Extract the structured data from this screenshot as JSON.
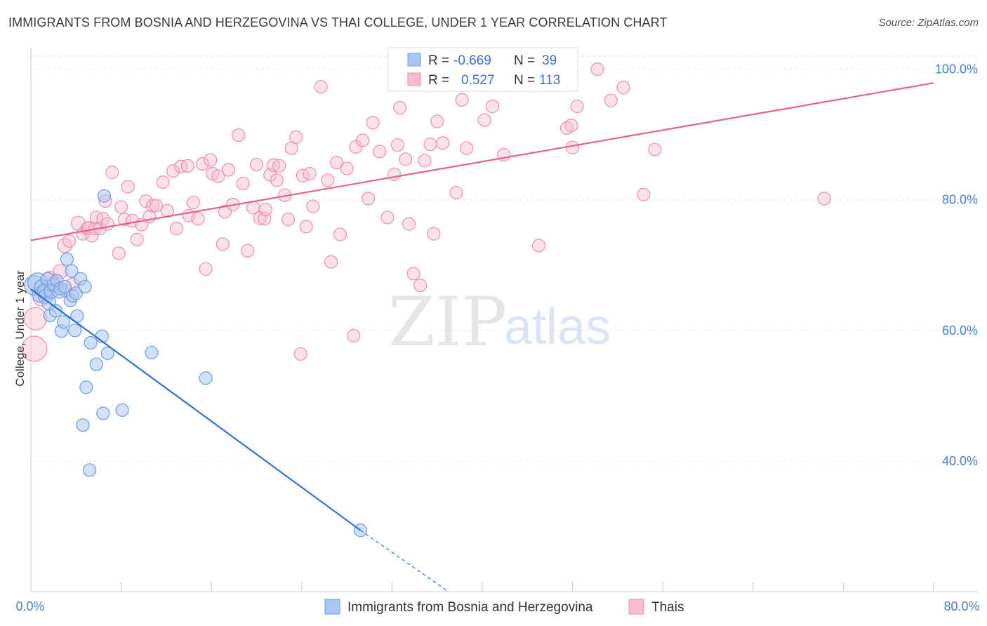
{
  "header": {
    "title": "IMMIGRANTS FROM BOSNIA AND HERZEGOVINA VS THAI COLLEGE, UNDER 1 YEAR CORRELATION CHART",
    "source": "Source: ZipAtlas.com"
  },
  "watermark": {
    "zip": "ZIP",
    "atlas": "atlas"
  },
  "legend": {
    "r_label": "R =",
    "n_label": "N =",
    "series": [
      {
        "r": "-0.669",
        "n": "39"
      },
      {
        "r": "0.527",
        "n": "113"
      }
    ]
  },
  "chart_data": {
    "type": "scatter",
    "title": "IMMIGRANTS FROM BOSNIA AND HERZEGOVINA VS THAI COLLEGE, UNDER 1 YEAR CORRELATION CHART",
    "xlabel": "",
    "ylabel": "College, Under 1 year",
    "xlim": [
      0,
      80
    ],
    "ylim": [
      20,
      102
    ],
    "x_tick_labels": [
      "0.0%",
      "80.0%"
    ],
    "y_ticks": [
      40,
      60,
      80,
      100
    ],
    "y_tick_labels": [
      "40.0%",
      "60.0%",
      "80.0%",
      "100.0%"
    ],
    "grid": true,
    "legend_position": "top-center",
    "colors": {
      "bosnia_fill": "#a9c6f0",
      "bosnia_stroke": "#6d9be0",
      "bosnia_line": "#2f72d6",
      "thai_fill": "#f7bcd0",
      "thai_stroke": "#ea8fae",
      "thai_line": "#e2638e"
    },
    "series": [
      {
        "name": "Immigrants from Bosnia and Herzegovina",
        "r": -0.669,
        "n": 39,
        "trend": {
          "x0": 0,
          "y0": 66.3,
          "x1": 29.2,
          "y1": 29.4,
          "dash_to_x": 37.0,
          "dash_to_y": 20.0
        },
        "points": [
          [
            0.3,
            66.9,
            14
          ],
          [
            0.6,
            67.3,
            14
          ],
          [
            0.8,
            65.5,
            11
          ],
          [
            1.0,
            66.6,
            11
          ],
          [
            1.2,
            66.0,
            10
          ],
          [
            1.3,
            65.2,
            10
          ],
          [
            1.5,
            67.8,
            10
          ],
          [
            1.6,
            64.2,
            10
          ],
          [
            1.7,
            62.3,
            9
          ],
          [
            1.8,
            66.0,
            10
          ],
          [
            2.0,
            67.0,
            9
          ],
          [
            2.2,
            63.0,
            9
          ],
          [
            2.3,
            67.6,
            9
          ],
          [
            2.5,
            65.9,
            9
          ],
          [
            2.6,
            66.4,
            9
          ],
          [
            2.7,
            59.9,
            9
          ],
          [
            2.9,
            61.3,
            9
          ],
          [
            3.0,
            66.7,
            9
          ],
          [
            3.2,
            70.9,
            9
          ],
          [
            3.5,
            64.6,
            9
          ],
          [
            3.6,
            69.1,
            9
          ],
          [
            3.7,
            65.3,
            9
          ],
          [
            3.9,
            60.0,
            9
          ],
          [
            4.0,
            65.7,
            9
          ],
          [
            4.1,
            62.2,
            9
          ],
          [
            4.4,
            67.9,
            9
          ],
          [
            4.6,
            45.5,
            9
          ],
          [
            4.8,
            66.7,
            9
          ],
          [
            4.9,
            51.3,
            9
          ],
          [
            5.2,
            38.6,
            9
          ],
          [
            5.3,
            58.1,
            9
          ],
          [
            5.8,
            54.8,
            9
          ],
          [
            6.3,
            59.1,
            9
          ],
          [
            6.4,
            47.3,
            9
          ],
          [
            6.8,
            56.5,
            9
          ],
          [
            6.5,
            80.6,
            9
          ],
          [
            8.1,
            47.8,
            9
          ],
          [
            10.7,
            56.6,
            9
          ],
          [
            15.5,
            52.7,
            9
          ],
          [
            29.2,
            29.4,
            9
          ]
        ]
      },
      {
        "name": "Thais",
        "r": 0.527,
        "n": 113,
        "trend": {
          "x0": 0,
          "y0": 73.8,
          "x1": 80,
          "y1": 97.9
        },
        "points": [
          [
            0.3,
            57.2,
            18
          ],
          [
            0.4,
            61.8,
            16
          ],
          [
            0.9,
            64.9,
            11
          ],
          [
            1.2,
            66.0,
            11
          ],
          [
            1.7,
            68.0,
            10
          ],
          [
            2.0,
            67.2,
            10
          ],
          [
            2.6,
            69.0,
            10
          ],
          [
            3.0,
            73.0,
            10
          ],
          [
            3.1,
            66.1,
            9
          ],
          [
            3.4,
            73.7,
            9
          ],
          [
            3.7,
            67.1,
            9
          ],
          [
            4.2,
            76.4,
            10
          ],
          [
            4.6,
            74.8,
            9
          ],
          [
            5.0,
            75.6,
            9
          ],
          [
            5.1,
            75.7,
            9
          ],
          [
            5.4,
            74.5,
            9
          ],
          [
            5.7,
            75.6,
            9
          ],
          [
            5.8,
            77.3,
            9
          ],
          [
            6.1,
            75.6,
            9
          ],
          [
            6.4,
            77.1,
            9
          ],
          [
            6.6,
            79.8,
            9
          ],
          [
            6.8,
            76.3,
            9
          ],
          [
            7.2,
            84.2,
            9
          ],
          [
            7.8,
            71.8,
            9
          ],
          [
            8.0,
            78.9,
            9
          ],
          [
            8.3,
            77.0,
            9
          ],
          [
            8.6,
            82.0,
            9
          ],
          [
            9.0,
            76.8,
            9
          ],
          [
            9.4,
            73.9,
            9
          ],
          [
            9.8,
            76.2,
            9
          ],
          [
            10.2,
            79.8,
            9
          ],
          [
            10.5,
            77.4,
            9
          ],
          [
            10.8,
            79.1,
            9
          ],
          [
            11.1,
            79.1,
            9
          ],
          [
            11.7,
            82.7,
            9
          ],
          [
            12.1,
            78.3,
            9
          ],
          [
            12.6,
            84.4,
            9
          ],
          [
            12.9,
            75.6,
            9
          ],
          [
            13.3,
            85.1,
            9
          ],
          [
            13.9,
            85.2,
            9
          ],
          [
            14.0,
            77.6,
            9
          ],
          [
            14.4,
            79.6,
            9
          ],
          [
            14.8,
            77.1,
            9
          ],
          [
            15.2,
            85.5,
            9
          ],
          [
            15.5,
            69.4,
            9
          ],
          [
            15.9,
            86.1,
            9
          ],
          [
            16.1,
            84.0,
            9
          ],
          [
            16.6,
            83.6,
            9
          ],
          [
            17.0,
            73.2,
            9
          ],
          [
            17.2,
            78.2,
            9
          ],
          [
            17.5,
            84.6,
            9
          ],
          [
            17.9,
            79.3,
            9
          ],
          [
            18.4,
            89.9,
            9
          ],
          [
            18.8,
            82.5,
            9
          ],
          [
            19.2,
            72.2,
            9
          ],
          [
            19.7,
            78.8,
            9
          ],
          [
            20.0,
            85.4,
            9
          ],
          [
            20.3,
            77.2,
            9
          ],
          [
            20.7,
            77.1,
            9
          ],
          [
            20.8,
            78.5,
            9
          ],
          [
            21.2,
            83.8,
            9
          ],
          [
            21.5,
            85.3,
            9
          ],
          [
            21.8,
            83.0,
            9
          ],
          [
            22.0,
            85.2,
            9
          ],
          [
            22.5,
            80.7,
            9
          ],
          [
            22.8,
            77.0,
            9
          ],
          [
            23.1,
            87.9,
            9
          ],
          [
            23.5,
            89.6,
            9
          ],
          [
            23.9,
            56.4,
            9
          ],
          [
            24.1,
            83.7,
            9
          ],
          [
            24.4,
            75.9,
            9
          ],
          [
            24.7,
            84.0,
            9
          ],
          [
            25.0,
            79.0,
            9
          ],
          [
            25.7,
            97.3,
            9
          ],
          [
            26.3,
            83.0,
            9
          ],
          [
            26.6,
            70.5,
            9
          ],
          [
            27.1,
            85.7,
            9
          ],
          [
            27.4,
            74.7,
            9
          ],
          [
            28.0,
            84.8,
            9
          ],
          [
            28.6,
            59.2,
            9
          ],
          [
            28.8,
            88.1,
            9
          ],
          [
            29.4,
            89.1,
            9
          ],
          [
            29.9,
            80.2,
            9
          ],
          [
            30.3,
            91.8,
            9
          ],
          [
            30.9,
            87.4,
            9
          ],
          [
            31.6,
            77.3,
            9
          ],
          [
            32.2,
            83.9,
            9
          ],
          [
            32.5,
            88.4,
            9
          ],
          [
            32.7,
            94.1,
            9
          ],
          [
            33.2,
            86.2,
            9
          ],
          [
            33.5,
            76.3,
            9
          ],
          [
            33.9,
            68.7,
            9
          ],
          [
            34.5,
            66.9,
            9
          ],
          [
            34.9,
            86.0,
            9
          ],
          [
            35.4,
            88.5,
            9
          ],
          [
            35.7,
            74.8,
            9
          ],
          [
            36.0,
            92.0,
            9
          ],
          [
            36.5,
            88.7,
            9
          ],
          [
            37.7,
            81.1,
            9
          ],
          [
            38.2,
            95.3,
            9
          ],
          [
            38.6,
            87.9,
            9
          ],
          [
            40.2,
            92.2,
            9
          ],
          [
            40.9,
            94.3,
            9
          ],
          [
            41.9,
            86.9,
            9
          ],
          [
            45.0,
            73.0,
            9
          ],
          [
            47.5,
            91.0,
            9
          ],
          [
            47.9,
            91.4,
            9
          ],
          [
            48.0,
            88.0,
            9
          ],
          [
            48.4,
            94.3,
            9
          ],
          [
            50.2,
            100.0,
            9
          ],
          [
            51.4,
            95.2,
            9
          ],
          [
            52.5,
            97.2,
            9
          ],
          [
            54.3,
            80.8,
            9
          ],
          [
            55.3,
            87.7,
            9
          ],
          [
            70.3,
            80.2,
            9
          ]
        ]
      }
    ]
  },
  "bottom_legend": {
    "items": [
      {
        "label": "Immigrants from Bosnia and Herzegovina"
      },
      {
        "label": "Thais"
      }
    ]
  }
}
